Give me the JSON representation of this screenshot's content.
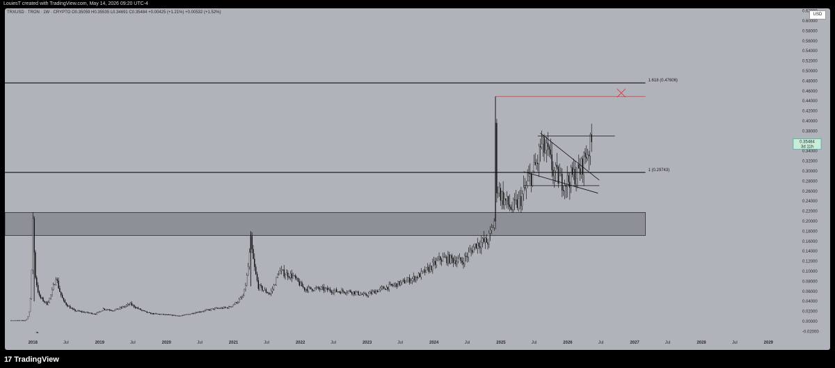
{
  "header": {
    "caption": "LouiesT created with TradingView.com, May 14, 2026 09:20 UTC-4"
  },
  "legend": {
    "text": "TRXUSD · TRON · 1W · CRYPTO  O0.35059  H0.35535  L0.34691  C0.35484  +0.00425 (+1.21%)  +0.00532 (+1.52%)"
  },
  "currency_button": "USD",
  "footer": {
    "brand": "TradingView",
    "logo_icon": "tradingview-logo-icon"
  },
  "last_price": {
    "value": "0.35484",
    "countdown": "3d 11h",
    "color": "#22ab94"
  },
  "colors": {
    "candles": "#000000",
    "red_line": "#e0353b",
    "zone": "#8e9097"
  },
  "chart_data": {
    "type": "candlestick",
    "title": "",
    "symbol": "TRXUSD",
    "timeframe": "1W",
    "y_ticks": [
      "-0.02000",
      "0.00000",
      "0.02000",
      "0.04000",
      "0.06000",
      "0.08000",
      "0.10000",
      "0.12000",
      "0.14000",
      "0.16000",
      "0.18000",
      "0.20000",
      "0.22000",
      "0.24000",
      "0.26000",
      "0.28000",
      "0.30000",
      "0.32000",
      "0.34000",
      "0.36000",
      "0.38000",
      "0.40000",
      "0.42000",
      "0.44000",
      "0.46000",
      "0.48000",
      "0.50000",
      "0.52000",
      "0.54000",
      "0.56000",
      "0.58000",
      "0.60000",
      "0.62000"
    ],
    "ylim": [
      -0.025,
      0.625
    ],
    "x_ticks": [
      "2018",
      "Jul",
      "2019",
      "Jul",
      "2020",
      "Jul",
      "2021",
      "Jul",
      "2022",
      "Jul",
      "2023",
      "Jul",
      "2024",
      "Jul",
      "2025",
      "Jul",
      "2026",
      "Jul",
      "2027",
      "Jul",
      "2028",
      "Jul",
      "2029"
    ],
    "xlim": [
      "2017-08-01",
      "2029-04-20"
    ],
    "price_path": [
      [
        "2017-09-04",
        0.002
      ],
      [
        "2017-11-20",
        0.002
      ],
      [
        "2017-12-18",
        0.045
      ],
      [
        "2018-01-01",
        0.21
      ],
      [
        "2018-01-15",
        0.09
      ],
      [
        "2018-02-05",
        0.05
      ],
      [
        "2018-03-19",
        0.035
      ],
      [
        "2018-05-07",
        0.09
      ],
      [
        "2018-06-18",
        0.04
      ],
      [
        "2018-08-13",
        0.022
      ],
      [
        "2018-12-10",
        0.015
      ],
      [
        "2019-01-21",
        0.025
      ],
      [
        "2019-03-18",
        0.022
      ],
      [
        "2019-06-17",
        0.035
      ],
      [
        "2019-09-30",
        0.016
      ],
      [
        "2020-03-16",
        0.011
      ],
      [
        "2020-06-08",
        0.018
      ],
      [
        "2020-09-14",
        0.025
      ],
      [
        "2020-12-07",
        0.028
      ],
      [
        "2021-02-22",
        0.05
      ],
      [
        "2021-04-05",
        0.16
      ],
      [
        "2021-05-17",
        0.07
      ],
      [
        "2021-07-19",
        0.055
      ],
      [
        "2021-09-06",
        0.1
      ],
      [
        "2021-11-22",
        0.09
      ],
      [
        "2022-01-24",
        0.065
      ],
      [
        "2022-04-25",
        0.065
      ],
      [
        "2022-07-18",
        0.06
      ],
      [
        "2022-10-03",
        0.06
      ],
      [
        "2022-12-19",
        0.052
      ],
      [
        "2023-03-20",
        0.065
      ],
      [
        "2023-06-19",
        0.075
      ],
      [
        "2023-09-25",
        0.088
      ],
      [
        "2023-12-04",
        0.105
      ],
      [
        "2024-02-05",
        0.125
      ],
      [
        "2024-03-18",
        0.125
      ],
      [
        "2024-06-03",
        0.12
      ],
      [
        "2024-08-19",
        0.155
      ],
      [
        "2024-10-21",
        0.16
      ],
      [
        "2024-11-25",
        0.2
      ],
      [
        "2024-12-02",
        0.38
      ],
      [
        "2024-12-09",
        0.27
      ],
      [
        "2025-01-13",
        0.245
      ],
      [
        "2025-03-03",
        0.225
      ],
      [
        "2025-04-14",
        0.24
      ],
      [
        "2025-06-02",
        0.28
      ],
      [
        "2025-07-21",
        0.32
      ],
      [
        "2025-08-04",
        0.35
      ],
      [
        "2025-09-15",
        0.335
      ],
      [
        "2025-10-13",
        0.3
      ],
      [
        "2025-11-24",
        0.28
      ],
      [
        "2025-12-29",
        0.28
      ],
      [
        "2026-01-26",
        0.29
      ],
      [
        "2026-03-09",
        0.3
      ],
      [
        "2026-04-06",
        0.33
      ],
      [
        "2026-05-11",
        0.355
      ]
    ],
    "annotations": [
      {
        "type": "hline",
        "y": 0.47606,
        "x_from": "2017-08-01",
        "x_to": "2027-03-01",
        "label": "1.618 (0.47606)"
      },
      {
        "type": "hline",
        "y": 0.29743,
        "x_from": "2017-08-01",
        "x_to": "2027-03-01",
        "label": "1 (0.29743)"
      },
      {
        "type": "hline",
        "y": 0.449,
        "x_from": "2024-12-02",
        "x_to": "2027-03-01",
        "color": "red"
      },
      {
        "type": "x-marker",
        "y": 0.456,
        "x": "2026-10-20",
        "color": "red"
      },
      {
        "type": "zone",
        "y_range": [
          0.1715,
          0.2175
        ],
        "x_from": "2017-08-01",
        "x_to": "2027-03-01"
      },
      {
        "type": "hline",
        "y": 0.37,
        "x_from": "2025-07-21",
        "x_to": "2026-09-15"
      },
      {
        "type": "hline",
        "y": 0.271,
        "x_from": "2025-05-05",
        "x_to": "2026-06-22"
      },
      {
        "type": "trendline",
        "from": [
          "2025-08-04",
          0.376
        ],
        "to": [
          "2026-06-22",
          0.282
        ]
      },
      {
        "type": "trendline",
        "from": [
          "2025-05-05",
          0.299
        ],
        "to": [
          "2026-06-15",
          0.256
        ]
      },
      {
        "type": "vline",
        "x": "2024-12-02",
        "y_from": 0.2,
        "y_to": 0.449
      }
    ]
  }
}
